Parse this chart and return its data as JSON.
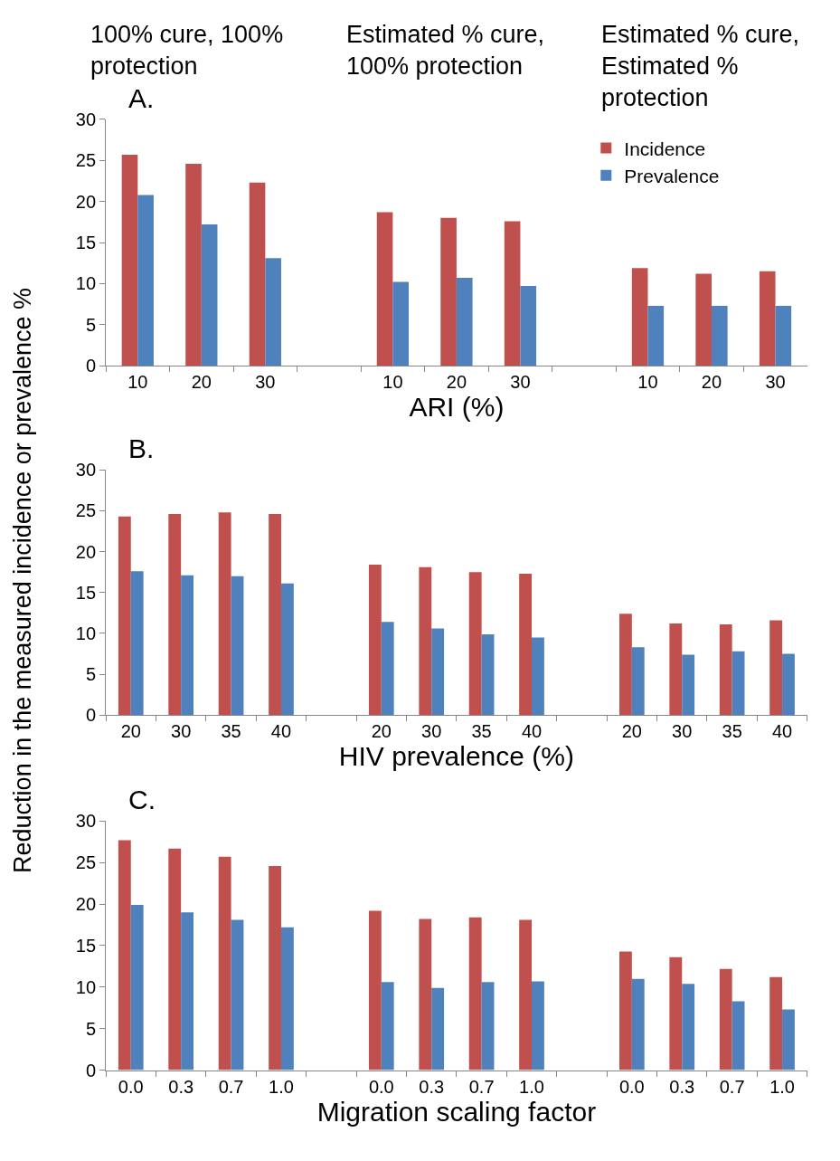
{
  "chart_data": [
    {
      "type": "bar",
      "title": "A.",
      "xlabel": "ARI (%)",
      "legend": "top right",
      "ylim": [
        0,
        30
      ],
      "yticks": [
        0,
        5,
        10,
        15,
        20,
        25,
        30
      ],
      "annotations": [
        "100% cure, 100% protection",
        "Estimated % cure, 100% protection",
        "Estimated % cure, Estimated % protection"
      ],
      "categories": [
        "10",
        "20",
        "30",
        null,
        "10",
        "20",
        "30",
        null,
        "10",
        "20",
        "30"
      ],
      "series": [
        {
          "name": "Incidence",
          "color": "#c0504d",
          "values": [
            25.7,
            24.6,
            22.3,
            null,
            18.7,
            18.0,
            17.6,
            null,
            11.9,
            11.2,
            11.5
          ]
        },
        {
          "name": "Prevalence",
          "color": "#4f81bd",
          "values": [
            20.8,
            17.2,
            13.1,
            null,
            10.2,
            10.7,
            9.7,
            null,
            7.3,
            7.3,
            7.3
          ]
        }
      ]
    },
    {
      "type": "bar",
      "title": "B.",
      "xlabel": "HIV prevalence (%)",
      "ylabel": "Reduction in the measured incidence or prevalence %",
      "ylim": [
        0,
        30
      ],
      "yticks": [
        0,
        5,
        10,
        15,
        20,
        25,
        30
      ],
      "categories": [
        "20",
        "30",
        "35",
        "40",
        null,
        "20",
        "30",
        "35",
        "40",
        null,
        "20",
        "30",
        "35",
        "40"
      ],
      "series": [
        {
          "color": "#c0504d",
          "values": [
            24.3,
            24.6,
            24.8,
            24.6,
            null,
            18.4,
            18.1,
            17.5,
            17.3,
            null,
            12.4,
            11.2,
            11.1,
            11.6
          ]
        },
        {
          "color": "#4f81bd",
          "values": [
            17.6,
            17.1,
            17.0,
            16.1,
            null,
            11.4,
            10.6,
            9.9,
            9.5,
            null,
            8.3,
            7.4,
            7.8,
            7.5
          ]
        }
      ]
    },
    {
      "type": "bar",
      "title": "C.",
      "xlabel": "Migration scaling factor",
      "ylim": [
        0,
        30
      ],
      "yticks": [
        0,
        5,
        10,
        15,
        20,
        25,
        30
      ],
      "categories": [
        "0.0",
        "0.3",
        "0.7",
        "1.0",
        null,
        "0.0",
        "0.3",
        "0.7",
        "1.0",
        null,
        "0.0",
        "0.3",
        "0.7",
        "1.0"
      ],
      "series": [
        {
          "color": "#c0504d",
          "values": [
            27.7,
            26.7,
            25.7,
            24.6,
            null,
            19.2,
            18.2,
            18.4,
            18.1,
            null,
            14.3,
            13.6,
            12.2,
            11.2
          ]
        },
        {
          "color": "#4f81bd",
          "values": [
            19.9,
            19.0,
            18.1,
            17.2,
            null,
            10.6,
            9.9,
            10.6,
            10.7,
            null,
            11.0,
            10.4,
            8.3,
            7.3
          ]
        }
      ]
    }
  ]
}
